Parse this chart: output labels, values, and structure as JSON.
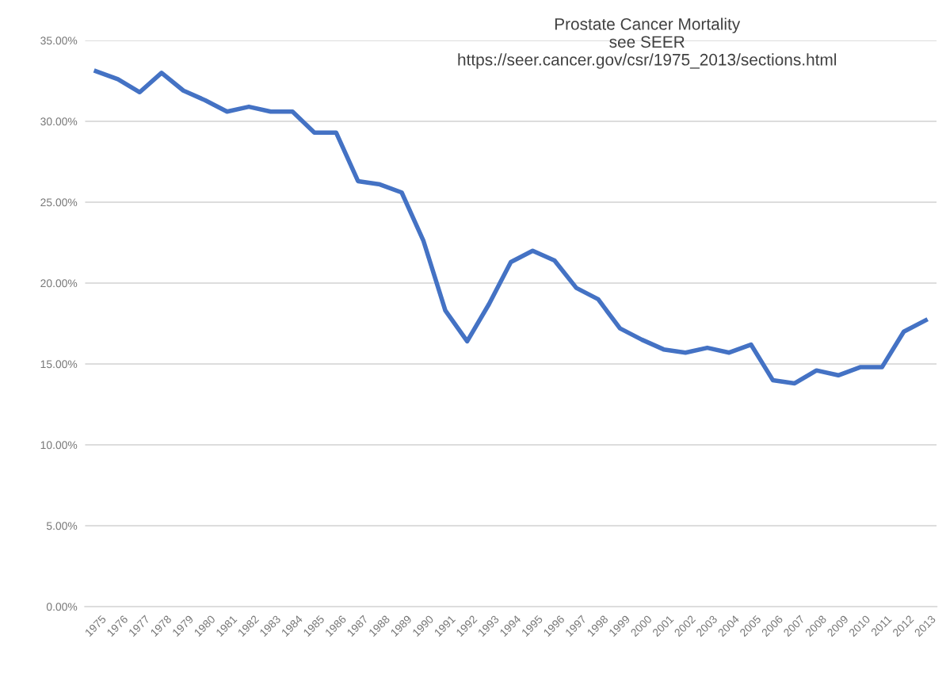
{
  "chart_data": {
    "type": "line",
    "title": "Prostate Cancer Mortality\nsee SEER\nhttps://seer.cancer.gov/csr/1975_2013/sections.html",
    "categories": [
      "1975",
      "1976",
      "1977",
      "1978",
      "1979",
      "1980",
      "1981",
      "1982",
      "1983",
      "1984",
      "1985",
      "1986",
      "1987",
      "1988",
      "1989",
      "1990",
      "1991",
      "1992",
      "1993",
      "1994",
      "1995",
      "1996",
      "1997",
      "1998",
      "1999",
      "2000",
      "2001",
      "2002",
      "2003",
      "2004",
      "2005",
      "2006",
      "2007",
      "2008",
      "2009",
      "2010",
      "2011",
      "2012",
      "2013"
    ],
    "series": [
      {
        "color": "#4472c4",
        "values": [
          33.1,
          32.6,
          31.8,
          33.0,
          31.9,
          31.3,
          30.6,
          30.9,
          30.6,
          30.6,
          29.3,
          29.3,
          26.3,
          26.1,
          25.6,
          22.6,
          18.3,
          16.4,
          18.7,
          21.3,
          22.0,
          21.4,
          19.7,
          19.0,
          17.2,
          16.5,
          15.9,
          15.7,
          16.0,
          15.7,
          16.2,
          14.0,
          13.8,
          14.6,
          14.3,
          14.8,
          14.8,
          17.0,
          17.7
        ]
      }
    ],
    "ylim": [
      0,
      35
    ],
    "yticks": [
      {
        "value": 0,
        "label": "0.00%"
      },
      {
        "value": 5,
        "label": "5.00%"
      },
      {
        "value": 10,
        "label": "10.00%"
      },
      {
        "value": 15,
        "label": "15.00%"
      },
      {
        "value": 20,
        "label": "20.00%"
      },
      {
        "value": 25,
        "label": "25.00%"
      },
      {
        "value": 30,
        "label": "30.00%"
      },
      {
        "value": 35,
        "label": "35.00%"
      }
    ],
    "grid": "y",
    "marker": "none",
    "line_style": "solid"
  }
}
